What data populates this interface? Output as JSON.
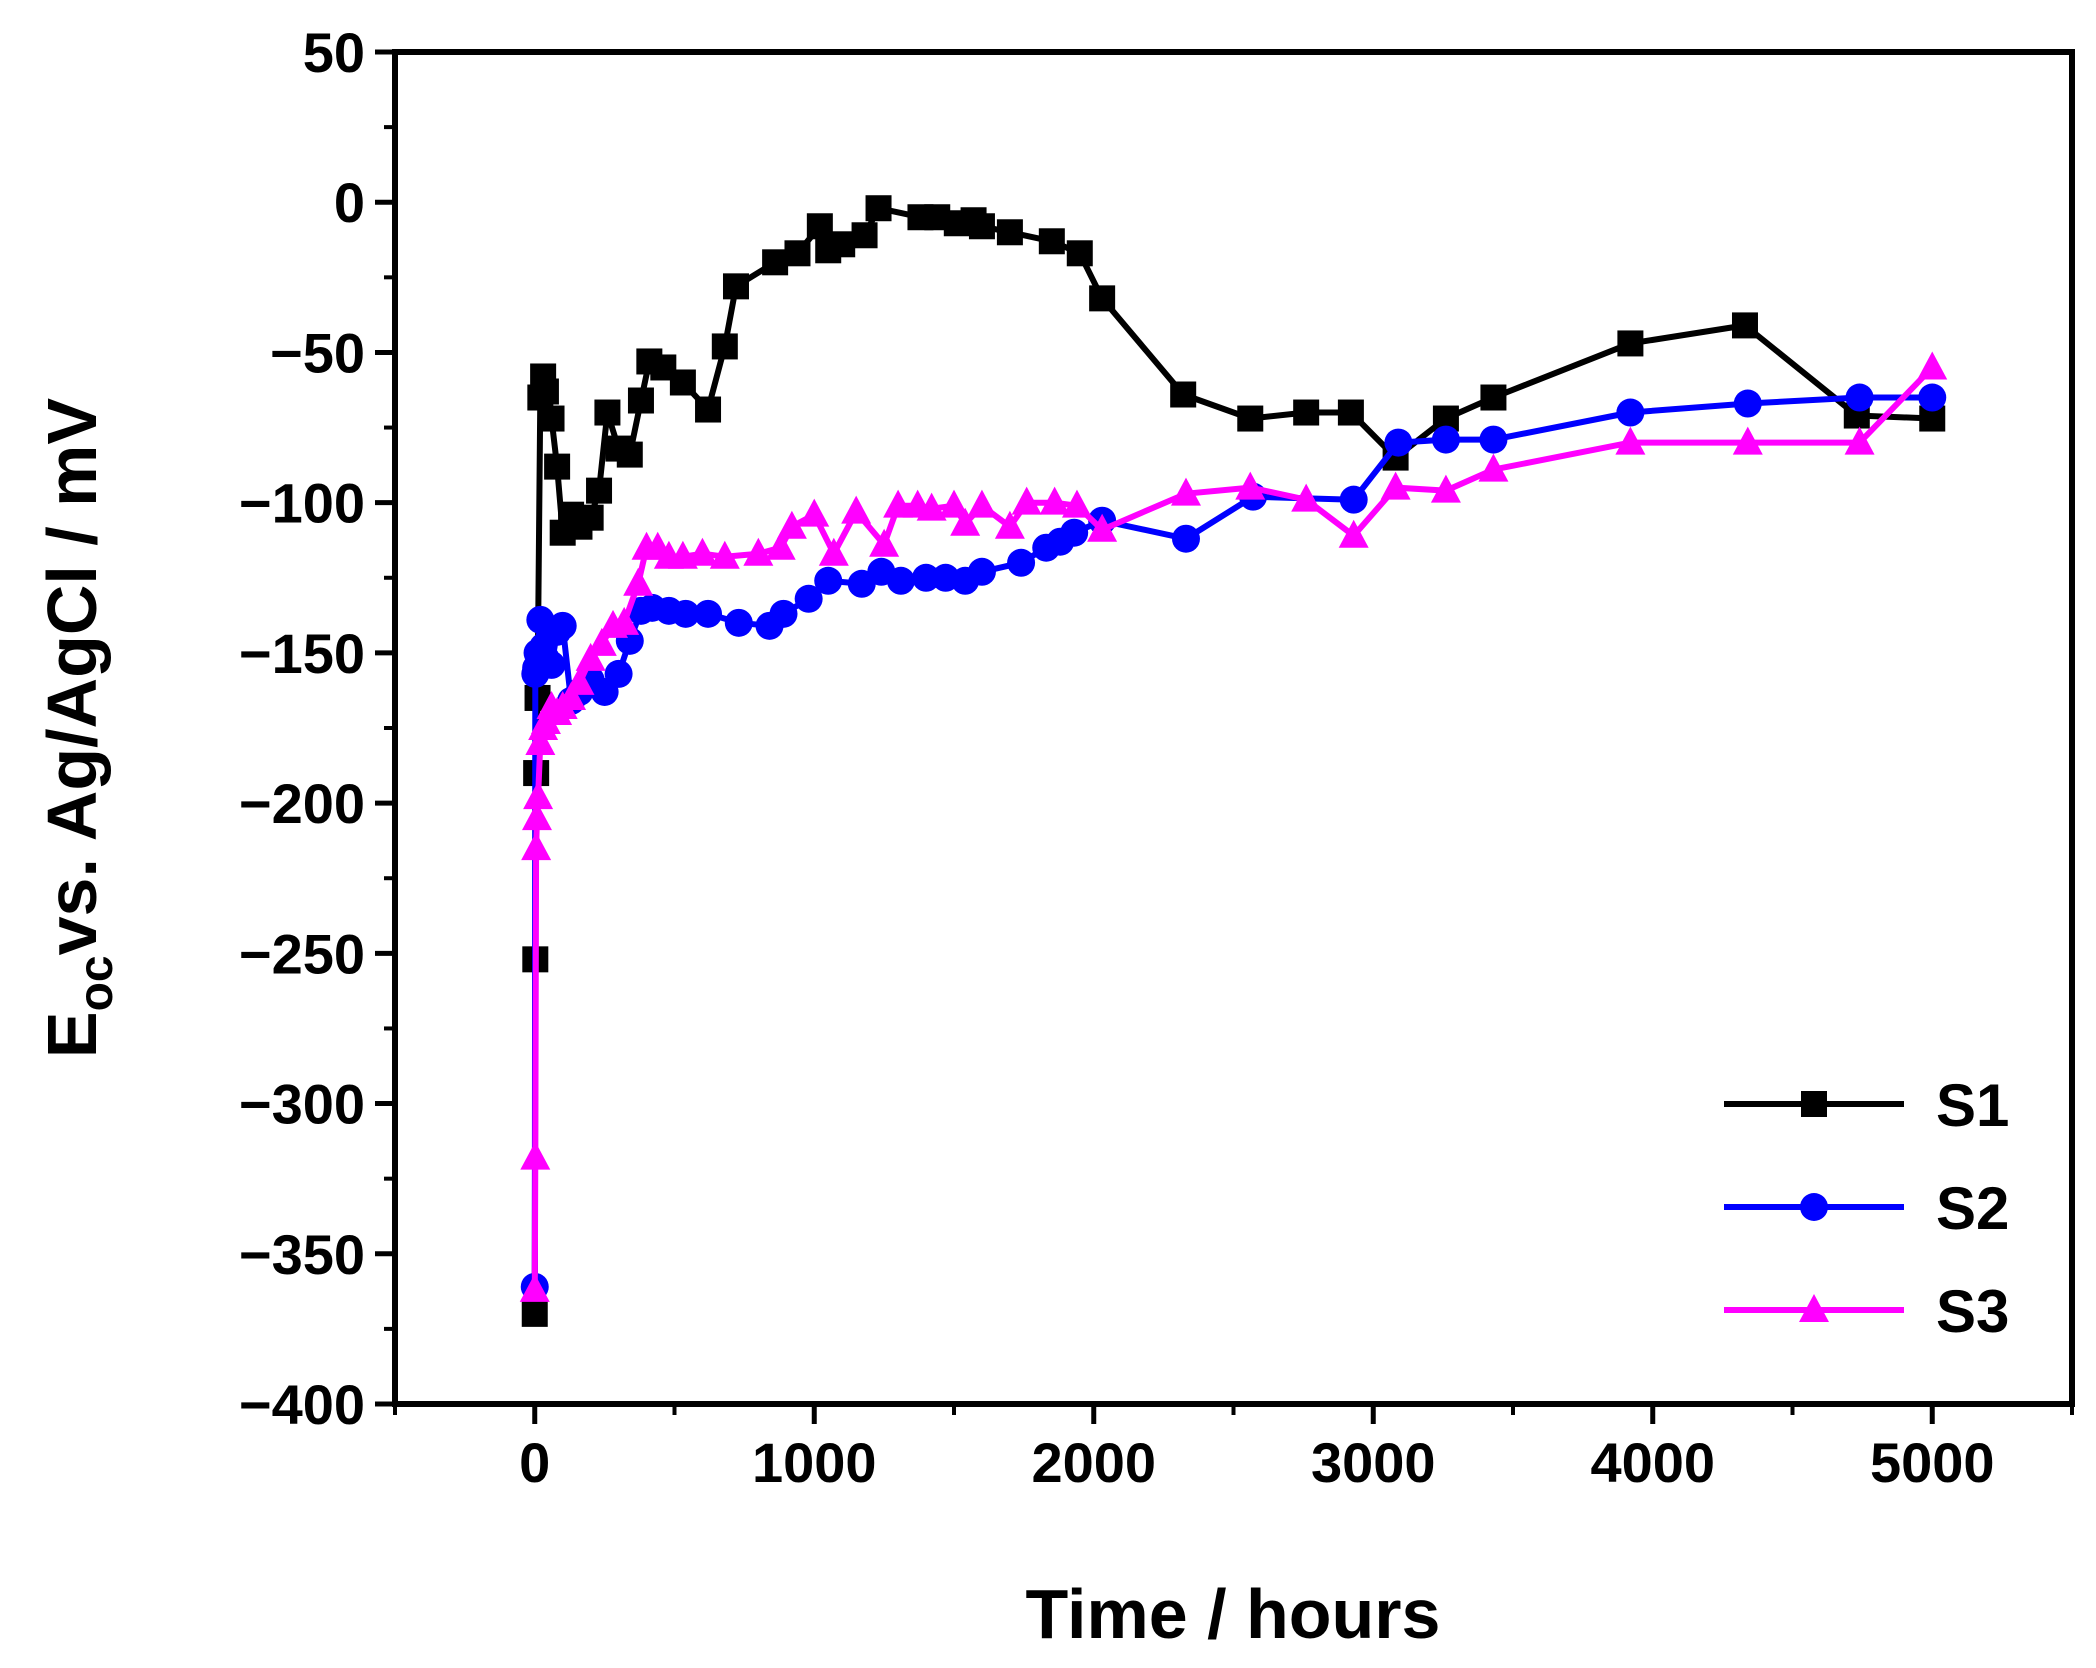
{
  "chart_data": {
    "type": "line",
    "title": "",
    "xlabel": "Time / hours",
    "ylabel": {
      "prefix": "E",
      "subscript": "oc",
      "suffix": "vs. Ag/AgCl / mV"
    },
    "xlim": [
      -500,
      5500
    ],
    "ylim": [
      -400,
      50
    ],
    "xticks": [
      0,
      1000,
      2000,
      3000,
      4000,
      5000
    ],
    "yticks": [
      50,
      0,
      -50,
      -100,
      -150,
      -200,
      -250,
      -300,
      -350,
      -400
    ],
    "ytick_labels": [
      "50",
      "0",
      "−50",
      "−100",
      "−150",
      "−200",
      "−250",
      "−300",
      "−350",
      "−400"
    ],
    "grid": false,
    "legend_position": "bottom-right",
    "series": [
      {
        "name": "S1",
        "color": "#000000",
        "marker": "square",
        "x": [
          0,
          2,
          5,
          10,
          20,
          30,
          40,
          60,
          80,
          100,
          130,
          160,
          200,
          230,
          260,
          300,
          340,
          380,
          410,
          460,
          530,
          620,
          680,
          720,
          860,
          940,
          1020,
          1050,
          1100,
          1180,
          1230,
          1380,
          1440,
          1510,
          1570,
          1600,
          1700,
          1850,
          1950,
          2030,
          2320,
          2560,
          2760,
          2920,
          3080,
          3260,
          3430,
          3920,
          4330,
          4730,
          5000
        ],
        "values": [
          -370,
          -252,
          -190,
          -165,
          -65,
          -58,
          -63,
          -72,
          -88,
          -110,
          -104,
          -108,
          -105,
          -96,
          -70,
          -82,
          -84,
          -66,
          -53,
          -55,
          -60,
          -69,
          -48,
          -28,
          -20,
          -17,
          -8,
          -16,
          -14,
          -11,
          -2,
          -5,
          -5,
          -7,
          -6,
          -8,
          -10,
          -13,
          -17,
          -32,
          -64,
          -72,
          -70,
          -70,
          -85,
          -72,
          -65,
          -47,
          -41,
          -71,
          -72
        ]
      },
      {
        "name": "S2",
        "color": "#0000ff",
        "marker": "circle",
        "x": [
          0,
          2,
          5,
          10,
          20,
          30,
          40,
          60,
          80,
          100,
          130,
          160,
          200,
          250,
          300,
          340,
          380,
          420,
          480,
          540,
          620,
          730,
          840,
          890,
          980,
          1050,
          1170,
          1240,
          1310,
          1400,
          1470,
          1540,
          1600,
          1740,
          1830,
          1880,
          1930,
          2030,
          2330,
          2570,
          2930,
          3090,
          3260,
          3430,
          3920,
          4340,
          4740,
          5000
        ],
        "values": [
          -361,
          -157,
          -155,
          -150,
          -139,
          -148,
          -152,
          -154,
          -143,
          -141,
          -166,
          -163,
          -159,
          -163,
          -157,
          -146,
          -136,
          -135,
          -136,
          -137,
          -137,
          -140,
          -141,
          -137,
          -132,
          -126,
          -127,
          -123,
          -126,
          -125,
          -125,
          -126,
          -123,
          -120,
          -115,
          -113,
          -110,
          -106,
          -112,
          -98,
          -99,
          -80,
          -79,
          -79,
          -70,
          -67,
          -65,
          -65
        ]
      },
      {
        "name": "S3",
        "color": "#ff00ff",
        "marker": "triangle",
        "x": [
          0,
          2,
          5,
          8,
          12,
          20,
          30,
          40,
          60,
          80,
          100,
          130,
          160,
          200,
          240,
          280,
          320,
          370,
          400,
          440,
          480,
          530,
          600,
          680,
          800,
          880,
          920,
          1000,
          1070,
          1150,
          1250,
          1300,
          1370,
          1420,
          1500,
          1540,
          1600,
          1700,
          1760,
          1860,
          1940,
          2030,
          2330,
          2560,
          2760,
          2930,
          3080,
          3260,
          3430,
          3920,
          4340,
          4740,
          5000
        ],
        "values": [
          -362,
          -318,
          -215,
          -205,
          -198,
          -180,
          -175,
          -173,
          -168,
          -170,
          -168,
          -165,
          -160,
          -152,
          -147,
          -141,
          -140,
          -127,
          -115,
          -115,
          -118,
          -118,
          -117,
          -118,
          -117,
          -115,
          -108,
          -104,
          -117,
          -103,
          -114,
          -101,
          -101,
          -102,
          -101,
          -107,
          -101,
          -108,
          -100,
          -100,
          -101,
          -109,
          -97,
          -95,
          -99,
          -111,
          -95,
          -96,
          -89,
          -80,
          -80,
          -80,
          -55
        ]
      }
    ]
  }
}
